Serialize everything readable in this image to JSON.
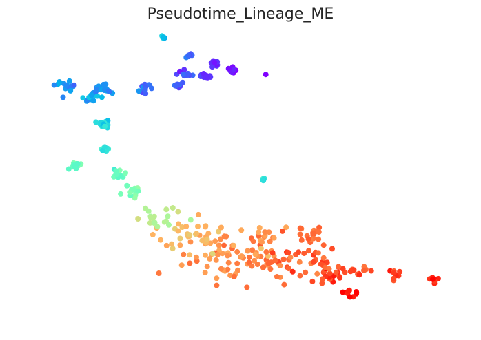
{
  "chart_data": {
    "type": "scatter",
    "title": "Pseudotime_Lineage_ME",
    "xlabel": "",
    "ylabel": "",
    "axes": "hidden",
    "grid": false,
    "legend": "none",
    "colormap": "rainbow",
    "xlim": [
      0,
      100
    ],
    "ylim": [
      0,
      100
    ],
    "color_range": [
      0,
      1
    ],
    "trajectory": [
      {
        "x": 95.0,
        "y": 13.5,
        "t": 0.97,
        "spread": 0.8,
        "n": 7
      },
      {
        "x": 86.0,
        "y": 15.5,
        "t": 0.93,
        "spread": 1.0,
        "n": 9
      },
      {
        "x": 78.0,
        "y": 16.5,
        "t": 0.9,
        "spread": 1.2,
        "n": 10
      },
      {
        "x": 75.5,
        "y": 9.0,
        "t": 0.99,
        "spread": 1.0,
        "n": 10
      },
      {
        "x": 71.0,
        "y": 14.5,
        "t": 0.92,
        "spread": 2.2,
        "n": 20
      },
      {
        "x": 66.0,
        "y": 20.0,
        "t": 0.88,
        "spread": 3.5,
        "n": 30
      },
      {
        "x": 66.0,
        "y": 30.0,
        "t": 0.86,
        "spread": 2.0,
        "n": 16
      },
      {
        "x": 56.0,
        "y": 20.0,
        "t": 0.84,
        "spread": 4.5,
        "n": 45
      },
      {
        "x": 56.0,
        "y": 29.0,
        "t": 0.81,
        "spread": 2.2,
        "n": 16
      },
      {
        "x": 46.0,
        "y": 22.0,
        "t": 0.8,
        "spread": 4.5,
        "n": 45
      },
      {
        "x": 37.5,
        "y": 30.0,
        "t": 0.74,
        "spread": 4.0,
        "n": 35
      },
      {
        "x": 30.0,
        "y": 36.0,
        "t": 0.6,
        "spread": 2.5,
        "n": 18
      },
      {
        "x": 24.0,
        "y": 45.0,
        "t": 0.5,
        "spread": 1.5,
        "n": 14
      },
      {
        "x": 21.0,
        "y": 52.0,
        "t": 0.46,
        "spread": 0.9,
        "n": 10
      },
      {
        "x": 11.0,
        "y": 55.0,
        "t": 0.46,
        "spread": 0.6,
        "n": 12
      },
      {
        "x": 18.0,
        "y": 61.0,
        "t": 0.38,
        "spread": 0.7,
        "n": 12
      },
      {
        "x": 18.0,
        "y": 70.0,
        "t": 0.32,
        "spread": 0.7,
        "n": 14
      },
      {
        "x": 15.0,
        "y": 80.0,
        "t": 0.24,
        "spread": 1.0,
        "n": 14
      },
      {
        "x": 9.0,
        "y": 84.0,
        "t": 0.2,
        "spread": 1.2,
        "n": 16
      },
      {
        "x": 17.0,
        "y": 83.0,
        "t": 0.18,
        "spread": 1.2,
        "n": 18
      },
      {
        "x": 27.0,
        "y": 83.0,
        "t": 0.14,
        "spread": 1.0,
        "n": 12
      },
      {
        "x": 35.0,
        "y": 84.0,
        "t": 0.11,
        "spread": 0.8,
        "n": 8
      },
      {
        "x": 37.0,
        "y": 88.0,
        "t": 0.09,
        "spread": 1.0,
        "n": 10
      },
      {
        "x": 42.0,
        "y": 87.0,
        "t": 0.06,
        "spread": 0.8,
        "n": 10
      },
      {
        "x": 44.0,
        "y": 91.5,
        "t": 0.05,
        "spread": 0.9,
        "n": 10
      },
      {
        "x": 48.0,
        "y": 89.5,
        "t": 0.03,
        "spread": 0.6,
        "n": 8
      },
      {
        "x": 38.0,
        "y": 95.0,
        "t": 0.12,
        "spread": 0.6,
        "n": 6
      },
      {
        "x": 32.0,
        "y": 101.5,
        "t": 0.28,
        "spread": 0.4,
        "n": 4
      },
      {
        "x": 56.0,
        "y": 88.0,
        "t": 0.01,
        "spread": 0.3,
        "n": 1
      },
      {
        "x": 55.0,
        "y": 50.0,
        "t": 0.35,
        "spread": 0.5,
        "n": 6
      }
    ]
  }
}
